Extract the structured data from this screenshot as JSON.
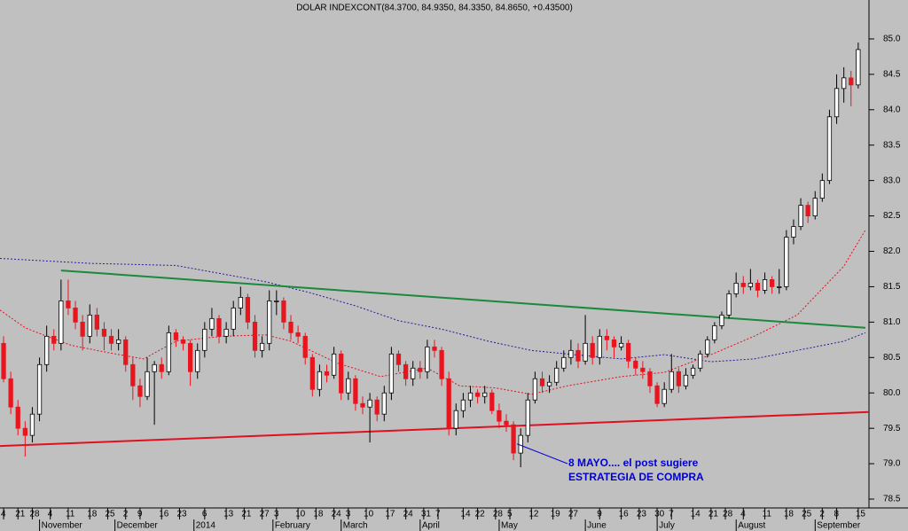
{
  "chart_data": {
    "type": "candlestick",
    "title": "DOLAR INDEXCONT(84.3700, 84.9350, 84.3350, 84.8650, +0.43500)",
    "xlim": [
      0,
      242
    ],
    "ylim": [
      78.4,
      85.55
    ],
    "yticks": [
      {
        "value": 78.5,
        "label": "78.5"
      },
      {
        "value": 79,
        "label": "79.0"
      },
      {
        "value": 79.5,
        "label": "79.5"
      },
      {
        "value": 80,
        "label": "80.0"
      },
      {
        "value": 80.5,
        "label": "80.5"
      },
      {
        "value": 81,
        "label": "81.0"
      },
      {
        "value": 81.5,
        "label": "81.5"
      },
      {
        "value": 82,
        "label": "82.0"
      },
      {
        "value": 82.5,
        "label": "82.5"
      },
      {
        "value": 83,
        "label": "83.0"
      },
      {
        "value": 83.5,
        "label": "83.5"
      },
      {
        "value": 84,
        "label": "84.0"
      },
      {
        "value": 84.5,
        "label": "84.5"
      },
      {
        "value": 85,
        "label": "85.0"
      }
    ],
    "xticks": [
      {
        "value": 1,
        "label": "4"
      },
      {
        "value": 5,
        "label": "21"
      },
      {
        "value": 9,
        "label": "28"
      },
      {
        "value": 14,
        "label": "4"
      },
      {
        "value": 19,
        "label": "11"
      },
      {
        "value": 25,
        "label": "18"
      },
      {
        "value": 30,
        "label": "25"
      },
      {
        "value": 35,
        "label": "2"
      },
      {
        "value": 39,
        "label": "9"
      },
      {
        "value": 45,
        "label": "16"
      },
      {
        "value": 50,
        "label": "23"
      },
      {
        "value": 57,
        "label": "6"
      },
      {
        "value": 63,
        "label": "13"
      },
      {
        "value": 68,
        "label": "21"
      },
      {
        "value": 73,
        "label": "27"
      },
      {
        "value": 77,
        "label": "3"
      },
      {
        "value": 83,
        "label": "10"
      },
      {
        "value": 88,
        "label": "18"
      },
      {
        "value": 93,
        "label": "24"
      },
      {
        "value": 97,
        "label": "3"
      },
      {
        "value": 102,
        "label": "10"
      },
      {
        "value": 108,
        "label": "17"
      },
      {
        "value": 113,
        "label": "24"
      },
      {
        "value": 118,
        "label": "31"
      },
      {
        "value": 122,
        "label": "7"
      },
      {
        "value": 129,
        "label": "14"
      },
      {
        "value": 133,
        "label": "22"
      },
      {
        "value": 138,
        "label": "28"
      },
      {
        "value": 142,
        "label": "5"
      },
      {
        "value": 148,
        "label": "12"
      },
      {
        "value": 154,
        "label": "19"
      },
      {
        "value": 159,
        "label": "27"
      },
      {
        "value": 167,
        "label": "9"
      },
      {
        "value": 173,
        "label": "16"
      },
      {
        "value": 178,
        "label": "23"
      },
      {
        "value": 183,
        "label": "30"
      },
      {
        "value": 187,
        "label": "7"
      },
      {
        "value": 193,
        "label": "14"
      },
      {
        "value": 198,
        "label": "21"
      },
      {
        "value": 202,
        "label": "28"
      },
      {
        "value": 207,
        "label": "4"
      },
      {
        "value": 213,
        "label": "11"
      },
      {
        "value": 219,
        "label": "18"
      },
      {
        "value": 224,
        "label": "25"
      },
      {
        "value": 229,
        "label": "2"
      },
      {
        "value": 233,
        "label": "8"
      },
      {
        "value": 239,
        "label": "15"
      }
    ],
    "month_ticks": [
      {
        "value": 12,
        "label": "November"
      },
      {
        "value": 33,
        "label": "December"
      },
      {
        "value": 55,
        "label": "2014"
      },
      {
        "value": 77,
        "label": "February"
      },
      {
        "value": 96,
        "label": "March"
      },
      {
        "value": 118,
        "label": "April"
      },
      {
        "value": 140,
        "label": "May"
      },
      {
        "value": 164,
        "label": "June"
      },
      {
        "value": 184,
        "label": "July"
      },
      {
        "value": 206,
        "label": "August"
      },
      {
        "value": 228,
        "label": "September"
      }
    ],
    "up_color": "#ffffff",
    "down_color": "#e8141e",
    "x": [
      1,
      3,
      5,
      7,
      9,
      11,
      13,
      15,
      17,
      19,
      21,
      23,
      25,
      27,
      29,
      31,
      33,
      35,
      37,
      39,
      41,
      43,
      45,
      47,
      49,
      51,
      53,
      55,
      57,
      59,
      61,
      63,
      65,
      67,
      69,
      71,
      73,
      75,
      77,
      79,
      81,
      83,
      85,
      87,
      89,
      91,
      93,
      95,
      97,
      99,
      101,
      103,
      105,
      107,
      109,
      111,
      113,
      115,
      117,
      119,
      121,
      123,
      125,
      127,
      129,
      131,
      133,
      135,
      137,
      139,
      141,
      143,
      145,
      147,
      149,
      151,
      153,
      155,
      157,
      159,
      161,
      163,
      165,
      167,
      169,
      171,
      173,
      175,
      177,
      179,
      181,
      183,
      185,
      187,
      189,
      191,
      193,
      195,
      197,
      199,
      201,
      203,
      205,
      207,
      209,
      211,
      213,
      215,
      217,
      219,
      221,
      223,
      225,
      227,
      229,
      231,
      233,
      235,
      237,
      239
    ],
    "candles": [
      [
        80.7,
        80.8,
        80.15,
        80.2
      ],
      [
        80.2,
        80.3,
        79.7,
        79.8
      ],
      [
        79.8,
        79.9,
        79.4,
        79.5
      ],
      [
        79.5,
        79.6,
        79.1,
        79.4
      ],
      [
        79.4,
        79.8,
        79.3,
        79.7
      ],
      [
        79.7,
        80.5,
        79.6,
        80.4
      ],
      [
        80.4,
        80.95,
        80.3,
        80.8
      ],
      [
        80.8,
        80.9,
        80.6,
        80.7
      ],
      [
        80.7,
        81.6,
        80.6,
        81.3
      ],
      [
        81.3,
        81.6,
        81.1,
        81.2
      ],
      [
        81.2,
        81.3,
        80.9,
        81.0
      ],
      [
        81.0,
        81.1,
        80.6,
        80.8
      ],
      [
        80.8,
        81.25,
        80.7,
        81.1
      ],
      [
        81.1,
        81.2,
        80.8,
        80.9
      ],
      [
        80.9,
        81.0,
        80.6,
        80.8
      ],
      [
        80.8,
        80.9,
        80.6,
        80.7
      ],
      [
        80.7,
        80.9,
        80.6,
        80.75
      ],
      [
        80.75,
        80.8,
        80.3,
        80.4
      ],
      [
        80.4,
        80.5,
        79.9,
        80.1
      ],
      [
        80.1,
        80.2,
        79.8,
        79.95
      ],
      [
        79.95,
        80.5,
        79.9,
        80.3
      ],
      [
        80.3,
        80.45,
        79.55,
        80.4
      ],
      [
        80.4,
        80.5,
        80.2,
        80.3
      ],
      [
        80.3,
        80.95,
        80.25,
        80.85
      ],
      [
        80.85,
        80.9,
        80.65,
        80.75
      ],
      [
        80.75,
        80.8,
        80.6,
        80.7
      ],
      [
        80.7,
        80.75,
        80.1,
        80.3
      ],
      [
        80.3,
        80.7,
        80.2,
        80.6
      ],
      [
        80.6,
        81.0,
        80.5,
        80.9
      ],
      [
        80.9,
        81.2,
        80.8,
        81.05
      ],
      [
        81.05,
        81.1,
        80.7,
        80.8
      ],
      [
        80.8,
        81.0,
        80.7,
        80.9
      ],
      [
        80.9,
        81.3,
        80.8,
        81.2
      ],
      [
        81.2,
        81.5,
        81.1,
        81.35
      ],
      [
        81.35,
        81.4,
        80.9,
        81.0
      ],
      [
        81.0,
        81.1,
        80.5,
        80.6
      ],
      [
        80.6,
        80.8,
        80.5,
        80.7
      ],
      [
        80.7,
        81.45,
        80.6,
        81.3
      ],
      [
        81.3,
        81.45,
        81.1,
        81.3
      ],
      [
        81.3,
        81.35,
        80.9,
        81.0
      ],
      [
        81.0,
        81.1,
        80.75,
        80.85
      ],
      [
        80.85,
        80.95,
        80.7,
        80.8
      ],
      [
        80.8,
        80.85,
        80.4,
        80.5
      ],
      [
        80.5,
        80.55,
        79.95,
        80.05
      ],
      [
        80.05,
        80.4,
        79.95,
        80.3
      ],
      [
        80.3,
        80.4,
        80.15,
        80.25
      ],
      [
        80.25,
        80.65,
        80.2,
        80.55
      ],
      [
        80.55,
        80.6,
        79.9,
        80.0
      ],
      [
        80.0,
        80.3,
        79.9,
        80.2
      ],
      [
        80.2,
        80.25,
        79.75,
        79.85
      ],
      [
        79.85,
        79.95,
        79.7,
        79.8
      ],
      [
        79.8,
        80.0,
        79.3,
        79.9
      ],
      [
        79.9,
        79.95,
        79.6,
        79.7
      ],
      [
        79.7,
        80.1,
        79.6,
        80.0
      ],
      [
        80.0,
        80.65,
        79.9,
        80.55
      ],
      [
        80.55,
        80.6,
        80.3,
        80.4
      ],
      [
        80.4,
        80.45,
        80.1,
        80.2
      ],
      [
        80.2,
        80.45,
        80.1,
        80.35
      ],
      [
        80.35,
        80.45,
        80.2,
        80.3
      ],
      [
        80.3,
        80.75,
        80.2,
        80.65
      ],
      [
        80.65,
        80.75,
        80.5,
        80.6
      ],
      [
        80.6,
        80.65,
        80.1,
        80.2
      ],
      [
        80.2,
        80.3,
        79.4,
        79.5
      ],
      [
        79.5,
        79.85,
        79.4,
        79.75
      ],
      [
        79.75,
        80.0,
        79.65,
        79.9
      ],
      [
        79.9,
        80.1,
        79.8,
        80.0
      ],
      [
        80.0,
        80.05,
        79.85,
        79.95
      ],
      [
        79.95,
        80.1,
        79.85,
        80.0
      ],
      [
        80.0,
        80.05,
        79.7,
        79.75
      ],
      [
        79.75,
        79.85,
        79.5,
        79.6
      ],
      [
        79.6,
        79.7,
        79.45,
        79.55
      ],
      [
        79.55,
        79.6,
        79.05,
        79.15
      ],
      [
        79.15,
        79.5,
        78.95,
        79.4
      ],
      [
        79.4,
        80.0,
        79.3,
        79.9
      ],
      [
        79.9,
        80.3,
        79.85,
        80.2
      ],
      [
        80.2,
        80.3,
        80.0,
        80.1
      ],
      [
        80.1,
        80.25,
        80.0,
        80.15
      ],
      [
        80.15,
        80.45,
        80.1,
        80.35
      ],
      [
        80.35,
        80.6,
        80.3,
        80.5
      ],
      [
        80.5,
        80.75,
        80.4,
        80.6
      ],
      [
        80.6,
        80.7,
        80.35,
        80.45
      ],
      [
        80.45,
        81.1,
        80.4,
        80.7
      ],
      [
        80.7,
        80.8,
        80.4,
        80.5
      ],
      [
        80.5,
        80.9,
        80.4,
        80.8
      ],
      [
        80.8,
        80.9,
        80.6,
        80.75
      ],
      [
        80.75,
        80.8,
        80.5,
        80.65
      ],
      [
        80.65,
        80.8,
        80.6,
        80.7
      ],
      [
        80.7,
        80.75,
        80.35,
        80.45
      ],
      [
        80.45,
        80.5,
        80.25,
        80.35
      ],
      [
        80.35,
        80.45,
        80.2,
        80.3
      ],
      [
        80.3,
        80.35,
        80.0,
        80.1
      ],
      [
        80.1,
        80.15,
        79.8,
        79.85
      ],
      [
        79.85,
        80.15,
        79.8,
        80.05
      ],
      [
        80.05,
        80.55,
        80.0,
        80.3
      ],
      [
        80.3,
        80.35,
        80.0,
        80.1
      ],
      [
        80.1,
        80.35,
        80.05,
        80.25
      ],
      [
        80.25,
        80.4,
        80.2,
        80.35
      ],
      [
        80.35,
        80.6,
        80.3,
        80.55
      ],
      [
        80.55,
        80.8,
        80.5,
        80.75
      ],
      [
        80.75,
        81.0,
        80.7,
        80.95
      ],
      [
        80.95,
        81.15,
        80.9,
        81.1
      ],
      [
        81.1,
        81.45,
        81.05,
        81.4
      ],
      [
        81.4,
        81.7,
        81.35,
        81.55
      ],
      [
        81.55,
        81.65,
        81.4,
        81.5
      ],
      [
        81.5,
        81.75,
        81.45,
        81.55
      ],
      [
        81.55,
        81.6,
        81.35,
        81.45
      ],
      [
        81.45,
        81.7,
        81.4,
        81.6
      ],
      [
        81.6,
        81.65,
        81.4,
        81.5
      ],
      [
        81.5,
        81.75,
        81.4,
        81.5
      ],
      [
        81.5,
        82.3,
        81.45,
        82.2
      ],
      [
        82.2,
        82.45,
        82.1,
        82.35
      ],
      [
        82.35,
        82.75,
        82.3,
        82.65
      ],
      [
        82.65,
        82.7,
        82.4,
        82.5
      ],
      [
        82.5,
        82.85,
        82.45,
        82.75
      ],
      [
        82.75,
        83.1,
        82.7,
        83.0
      ],
      [
        83.0,
        84.0,
        82.95,
        83.9
      ],
      [
        83.9,
        84.5,
        83.8,
        84.3
      ],
      [
        84.3,
        84.6,
        84.1,
        84.45
      ],
      [
        84.45,
        84.55,
        84.05,
        84.35
      ],
      [
        84.35,
        84.95,
        84.3,
        84.85
      ]
    ],
    "averages": [
      {
        "color": "#2a1a9a",
        "x": [
          0,
          25,
          49,
          74,
          86,
          99,
          111,
          123,
          136,
          148,
          160,
          173,
          185,
          198,
          210,
          222,
          235,
          241
        ],
        "values": [
          81.9,
          81.83,
          81.8,
          81.57,
          81.42,
          81.23,
          81.02,
          80.9,
          80.73,
          80.6,
          80.54,
          80.48,
          80.54,
          80.44,
          80.48,
          80.6,
          80.73,
          80.85
        ]
      },
      {
        "color": "#e01020",
        "x": [
          0,
          7,
          12,
          20,
          30,
          40,
          49,
          62,
          74,
          81,
          94,
          106,
          119,
          128,
          138,
          148,
          158,
          173,
          185,
          198,
          210,
          222,
          235,
          241
        ],
        "values": [
          81.17,
          80.92,
          80.82,
          80.67,
          80.57,
          80.48,
          80.73,
          80.8,
          80.82,
          80.73,
          80.42,
          80.23,
          80.35,
          80.1,
          80.07,
          79.98,
          80.1,
          80.23,
          80.29,
          80.54,
          80.8,
          81.1,
          81.79,
          82.3
        ]
      }
    ],
    "trendlines": [
      {
        "color": "#1a8a3a",
        "x": [
          17,
          241
        ],
        "values": [
          81.73,
          80.92
        ]
      },
      {
        "color": "#e01020",
        "x": [
          0,
          242
        ],
        "values": [
          79.25,
          79.73
        ]
      }
    ],
    "annotation": {
      "lines": [
        "8 MAYO.... el post sugiere",
        "ESTRATEGIA DE COMPRA"
      ],
      "x": 144,
      "value": 79.28
    }
  }
}
